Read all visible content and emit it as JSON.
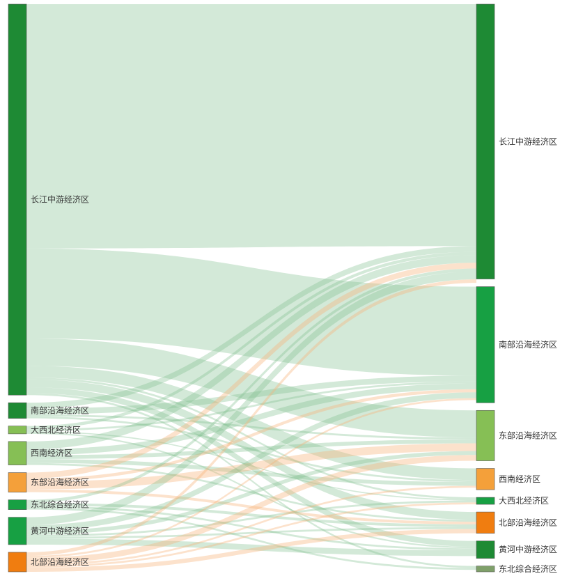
{
  "chart_data": {
    "type": "sankey",
    "title": "",
    "units": "",
    "left_nodes": [
      {
        "id": "L_changjiang",
        "label": "长江中游经济区",
        "value": 100,
        "color": "#1e8a34"
      },
      {
        "id": "L_nanbu",
        "label": "南部沿海经济区",
        "value": 4,
        "color": "#1e8a34"
      },
      {
        "id": "L_daxibei",
        "label": "大西北经济区",
        "value": 2,
        "color": "#86bf55"
      },
      {
        "id": "L_xinan",
        "label": "西南经济区",
        "value": 6,
        "color": "#86bf55"
      },
      {
        "id": "L_dongbu",
        "label": "东部沿海经济区",
        "value": 5,
        "color": "#f4a03a"
      },
      {
        "id": "L_dongbei",
        "label": "东北综合经济区",
        "value": 2.5,
        "color": "#17a043"
      },
      {
        "id": "L_huanghe",
        "label": "黄河中游经济区",
        "value": 7,
        "color": "#17a043"
      },
      {
        "id": "L_beibu",
        "label": "北部沿海经济区",
        "value": 5,
        "color": "#f07d10"
      }
    ],
    "right_nodes": [
      {
        "id": "R_changjiang",
        "label": "长江中游经济区",
        "value": 71,
        "color": "#1e8a34"
      },
      {
        "id": "R_nanbu",
        "label": "南部沿海经济区",
        "value": 30,
        "color": "#17a043"
      },
      {
        "id": "R_dongbu",
        "label": "东部沿海经济区",
        "value": 13,
        "color": "#86bf55"
      },
      {
        "id": "R_xinan",
        "label": "西南经济区",
        "value": 5.5,
        "color": "#f4a03a"
      },
      {
        "id": "R_daxibei",
        "label": "大西北经济区",
        "value": 1.8,
        "color": "#17a043"
      },
      {
        "id": "R_beibu",
        "label": "北部沿海经济区",
        "value": 5.5,
        "color": "#f07d10"
      },
      {
        "id": "R_huanghe",
        "label": "黄河中游经济区",
        "value": 4.5,
        "color": "#1e8a34"
      },
      {
        "id": "R_dongbei",
        "label": "东北综合经济区",
        "value": 1.5,
        "color": "#7fa06a"
      }
    ],
    "links": [
      {
        "source": "L_changjiang",
        "target": "R_changjiang",
        "value": 62.5
      },
      {
        "source": "L_changjiang",
        "target": "R_nanbu",
        "value": 23
      },
      {
        "source": "L_changjiang",
        "target": "R_dongbu",
        "value": 7
      },
      {
        "source": "L_changjiang",
        "target": "R_xinan",
        "value": 3
      },
      {
        "source": "L_changjiang",
        "target": "R_beibu",
        "value": 2
      },
      {
        "source": "L_changjiang",
        "target": "R_huanghe",
        "value": 1.5
      },
      {
        "source": "L_changjiang",
        "target": "R_daxibei",
        "value": 0.5
      },
      {
        "source": "L_changjiang",
        "target": "R_dongbei",
        "value": 0.5
      },
      {
        "source": "L_nanbu",
        "target": "R_changjiang",
        "value": 1.5
      },
      {
        "source": "L_nanbu",
        "target": "R_nanbu",
        "value": 1.5
      },
      {
        "source": "L_nanbu",
        "target": "R_dongbu",
        "value": 0.5
      },
      {
        "source": "L_nanbu",
        "target": "R_xinan",
        "value": 0.5
      },
      {
        "source": "L_daxibei",
        "target": "R_changjiang",
        "value": 0.8
      },
      {
        "source": "L_daxibei",
        "target": "R_nanbu",
        "value": 0.5
      },
      {
        "source": "L_daxibei",
        "target": "R_huanghe",
        "value": 0.4
      },
      {
        "source": "L_daxibei",
        "target": "R_daxibei",
        "value": 0.3
      },
      {
        "source": "L_xinan",
        "target": "R_changjiang",
        "value": 2
      },
      {
        "source": "L_xinan",
        "target": "R_nanbu",
        "value": 1.5
      },
      {
        "source": "L_xinan",
        "target": "R_dongbu",
        "value": 1
      },
      {
        "source": "L_xinan",
        "target": "R_xinan",
        "value": 1
      },
      {
        "source": "L_xinan",
        "target": "R_beibu",
        "value": 0.5
      },
      {
        "source": "L_dongbu",
        "target": "R_changjiang",
        "value": 1.5
      },
      {
        "source": "L_dongbu",
        "target": "R_dongbu",
        "value": 2
      },
      {
        "source": "L_dongbu",
        "target": "R_nanbu",
        "value": 0.8
      },
      {
        "source": "L_dongbu",
        "target": "R_beibu",
        "value": 0.7
      },
      {
        "source": "L_dongbei",
        "target": "R_changjiang",
        "value": 0.8
      },
      {
        "source": "L_dongbei",
        "target": "R_beibu",
        "value": 0.7
      },
      {
        "source": "L_dongbei",
        "target": "R_dongbei",
        "value": 0.5
      },
      {
        "source": "L_dongbei",
        "target": "R_huanghe",
        "value": 0.5
      },
      {
        "source": "L_huanghe",
        "target": "R_changjiang",
        "value": 2
      },
      {
        "source": "L_huanghe",
        "target": "R_nanbu",
        "value": 1.5
      },
      {
        "source": "L_huanghe",
        "target": "R_huanghe",
        "value": 1.5
      },
      {
        "source": "L_huanghe",
        "target": "R_dongbu",
        "value": 1
      },
      {
        "source": "L_huanghe",
        "target": "R_daxibei",
        "value": 0.5
      },
      {
        "source": "L_huanghe",
        "target": "R_beibu",
        "value": 0.5
      },
      {
        "source": "L_beibu",
        "target": "R_changjiang",
        "value": 0.9
      },
      {
        "source": "L_beibu",
        "target": "R_beibu",
        "value": 1.1
      },
      {
        "source": "L_beibu",
        "target": "R_dongbu",
        "value": 1.5
      },
      {
        "source": "L_beibu",
        "target": "R_nanbu",
        "value": 0.5
      },
      {
        "source": "L_beibu",
        "target": "R_xinan",
        "value": 0.5
      },
      {
        "source": "L_beibu",
        "target": "R_daxibei",
        "value": 0.5
      }
    ]
  }
}
